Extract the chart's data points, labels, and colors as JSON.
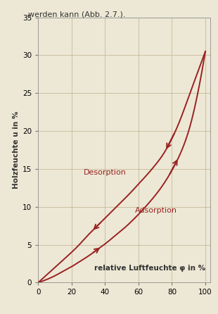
{
  "title_above": "werden kann (Abb. 2.7.).",
  "xlabel": "relative Luftfeuchte φ in %",
  "ylabel": "Holzfeuchte u in %",
  "background_color": "#ede8d5",
  "curve_color": "#992222",
  "xlim": [
    0,
    103
  ],
  "ylim": [
    0,
    35
  ],
  "xticks": [
    0,
    20,
    40,
    60,
    80,
    100
  ],
  "yticks": [
    0,
    5,
    10,
    15,
    20,
    25,
    30,
    35
  ],
  "label_desorption": "Desorption",
  "label_adsorption": "Adsorption",
  "desorption_x": [
    0,
    5,
    10,
    15,
    20,
    25,
    30,
    35,
    40,
    45,
    50,
    55,
    60,
    65,
    70,
    75,
    80,
    85,
    90,
    95,
    100
  ],
  "desorption_y": [
    0,
    1.0,
    2.0,
    3.0,
    4.0,
    5.1,
    6.3,
    7.4,
    8.5,
    9.6,
    10.7,
    11.8,
    13.0,
    14.2,
    15.5,
    17.0,
    19.0,
    21.5,
    24.5,
    27.5,
    30.5
  ],
  "adsorption_x": [
    0,
    5,
    10,
    15,
    20,
    25,
    30,
    35,
    40,
    45,
    50,
    55,
    60,
    65,
    70,
    75,
    80,
    85,
    90,
    95,
    100
  ],
  "adsorption_y": [
    0,
    0.4,
    0.9,
    1.5,
    2.1,
    2.8,
    3.5,
    4.3,
    5.1,
    6.0,
    6.9,
    7.9,
    9.0,
    10.2,
    11.5,
    13.0,
    14.8,
    17.0,
    20.0,
    24.5,
    30.5
  ],
  "figsize": [
    3.1,
    4.46
  ],
  "dpi": 100
}
